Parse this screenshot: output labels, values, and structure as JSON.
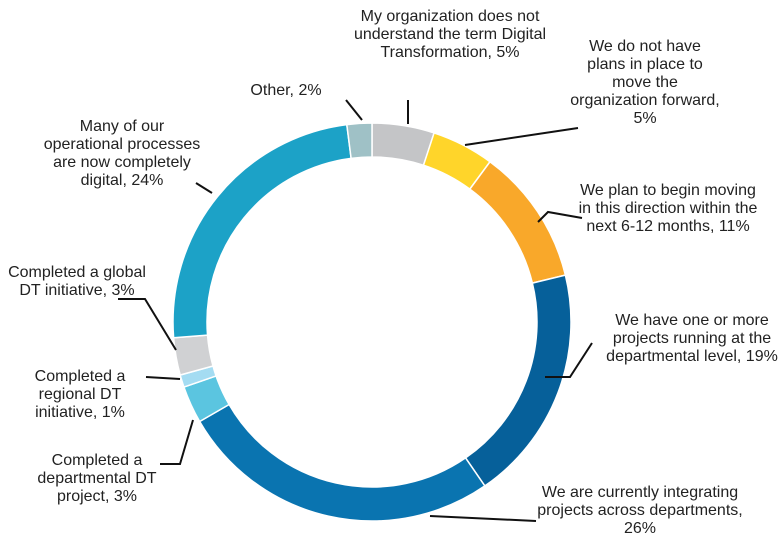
{
  "chart_data": {
    "type": "donut",
    "values": [
      5,
      5,
      11,
      19,
      26,
      3,
      1,
      3,
      24,
      2
    ],
    "value_labels": [
      "My organization does not understand the term Digital Transformation, 5%",
      "We do not have plans in place to move the organization forward, 5%",
      "We plan to begin moving in this direction within the next 6-12 months, 11%",
      "We have one or more projects running at the departmental level, 19%",
      "We are currently integrating projects across departments, 26%",
      "Completed a departmental DT project, 3%",
      "Completed a regional DT initiative, 1%",
      "Completed a global DT initiative, 3%",
      "Many of our operational processes are now completely digital, 24%",
      "Other, 2%"
    ],
    "colors": [
      "#c4c5c7",
      "#ffd52a",
      "#f9a82a",
      "#06609a",
      "#0a74b0",
      "#5bc5e0",
      "#a4dcf2",
      "#d0d1d3",
      "#1ca2c7",
      "#9fc1c6"
    ]
  }
}
